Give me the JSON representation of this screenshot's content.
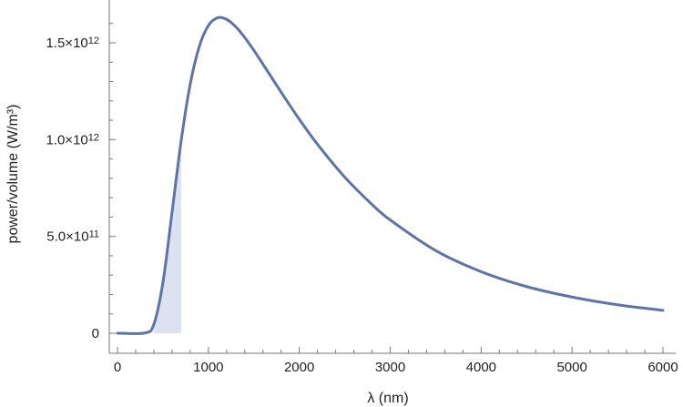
{
  "chart_data": {
    "type": "line",
    "title": "",
    "xlabel": "λ (nm)",
    "ylabel": "power/volume (W/m³)",
    "xlim": [
      0,
      6000
    ],
    "ylim": [
      0,
      1700000000000
    ],
    "grid": false,
    "x_ticks": [
      0,
      1000,
      2000,
      3000,
      4000,
      5000,
      6000
    ],
    "x_tick_labels": [
      "0",
      "1000",
      "2000",
      "3000",
      "4000",
      "5000",
      "6000"
    ],
    "y_ticks": [
      0,
      500000000000,
      1000000000000,
      1500000000000
    ],
    "y_tick_labels": [
      {
        "mantissa": "0",
        "exponent": ""
      },
      {
        "mantissa": "5.0×10",
        "exponent": "11"
      },
      {
        "mantissa": "1.0×10",
        "exponent": "12"
      },
      {
        "mantissa": "1.5×10",
        "exponent": "12"
      }
    ],
    "series": [
      {
        "color": "#5E74A8",
        "x": [
          0,
          300,
          400,
          500,
          600,
          700,
          800,
          900,
          1000,
          1100,
          1200,
          1300,
          1400,
          1500,
          1600,
          1800,
          2000,
          2200,
          2500,
          2800,
          3000,
          3500,
          4000,
          4500,
          5000,
          5500,
          6000
        ],
        "y": [
          0,
          1600000000,
          46000000000,
          262000000000,
          624000000000,
          992000000000,
          1286000000000,
          1481000000000,
          1589000000000,
          1629000000000,
          1621000000000,
          1583000000000,
          1527000000000,
          1461000000000,
          1390000000000,
          1245000000000,
          1105000000000,
          976000000000,
          806000000000,
          665000000000,
          585000000000,
          427000000000,
          318000000000,
          241000000000,
          187000000000,
          147000000000,
          118000000000
        ]
      }
    ],
    "shaded_region": {
      "x_from": 400,
      "x_to": 700,
      "color": "#DCE2EF"
    }
  }
}
